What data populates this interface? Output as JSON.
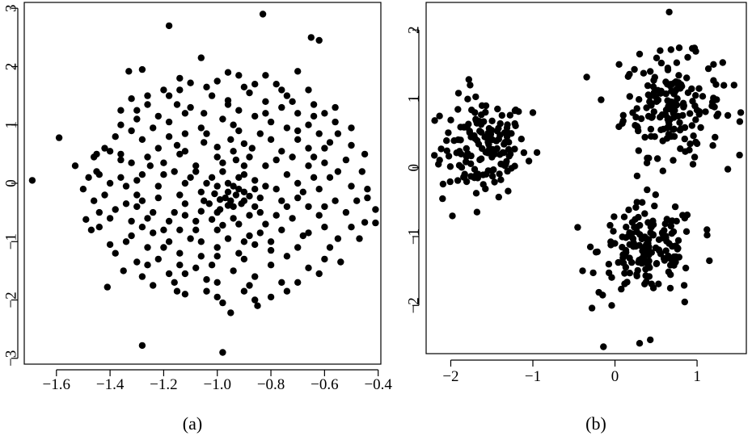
{
  "chart_data": [
    {
      "type": "scatter",
      "caption": "(a)",
      "xlim": [
        -1.72,
        -0.39
      ],
      "ylim": [
        -3.1,
        3.1
      ],
      "x_ticks": [
        -1.6,
        -1.4,
        -1.2,
        -1.0,
        -0.8,
        -0.6,
        -0.4
      ],
      "x_tick_labels": [
        "−1.6",
        "−1.4",
        "−1.2",
        "−1.0",
        "−0.8",
        "−0.6",
        "−0.4"
      ],
      "y_ticks": [
        -3,
        -2,
        -1,
        0,
        1,
        2,
        3
      ],
      "y_tick_labels": [
        "−3",
        "−2",
        "−1",
        "0",
        "1",
        "2",
        "3"
      ],
      "grid": false,
      "points": [
        [
          -1.69,
          0.05
        ],
        [
          -1.59,
          0.78
        ],
        [
          -0.83,
          2.9
        ],
        [
          -1.18,
          2.7
        ],
        [
          -0.65,
          2.5
        ],
        [
          -0.62,
          2.45
        ],
        [
          -1.28,
          -2.78
        ],
        [
          -0.98,
          -2.9
        ],
        [
          -0.41,
          -0.45
        ],
        [
          -0.41,
          -0.68
        ],
        [
          -0.45,
          -0.67
        ],
        [
          -0.44,
          -0.1
        ],
        [
          -1.49,
          -0.62
        ],
        [
          -1.47,
          -0.8
        ],
        [
          -1.45,
          0.5
        ],
        [
          -1.41,
          -1.78
        ],
        [
          -1.35,
          -1.5
        ],
        [
          -1.33,
          1.92
        ],
        [
          -1.28,
          1.95
        ],
        [
          -1.06,
          2.15
        ],
        [
          -0.7,
          1.92
        ],
        [
          -0.95,
          -2.22
        ],
        [
          -0.85,
          -2.1
        ],
        [
          -1.24,
          -1.75
        ],
        [
          -1.53,
          0.3
        ],
        [
          -1.5,
          -0.1
        ],
        [
          -1.38,
          0.8
        ],
        [
          -1.32,
          1.45
        ],
        [
          -1.2,
          1.6
        ],
        [
          -1.1,
          1.72
        ],
        [
          -0.92,
          1.85
        ],
        [
          -0.78,
          1.7
        ],
        [
          -0.72,
          1.4
        ],
        [
          -0.6,
          1.2
        ],
        [
          -0.55,
          0.85
        ],
        [
          -0.52,
          0.4
        ],
        [
          -0.5,
          -0.05
        ],
        [
          -0.52,
          -0.5
        ],
        [
          -0.55,
          -0.95
        ],
        [
          -0.6,
          -1.3
        ],
        [
          -0.7,
          -1.7
        ],
        [
          -0.8,
          -1.95
        ],
        [
          -1.0,
          -1.95
        ],
        [
          -1.15,
          -1.85
        ],
        [
          -1.28,
          -1.6
        ],
        [
          -1.38,
          -1.2
        ],
        [
          -1.44,
          -0.75
        ],
        [
          -1.46,
          -0.3
        ],
        [
          -1.44,
          0.15
        ],
        [
          -1.4,
          0.55
        ],
        [
          -1.3,
          1.1
        ],
        [
          -1.15,
          1.35
        ],
        [
          -1.02,
          1.5
        ],
        [
          -0.88,
          1.55
        ],
        [
          -0.76,
          1.3
        ],
        [
          -0.66,
          1.0
        ],
        [
          -0.6,
          0.6
        ],
        [
          -0.58,
          0.1
        ],
        [
          -0.6,
          -0.4
        ],
        [
          -0.66,
          -0.85
        ],
        [
          -0.74,
          -1.25
        ],
        [
          -0.86,
          -1.6
        ],
        [
          -1.0,
          -1.7
        ],
        [
          -1.12,
          -1.55
        ],
        [
          -1.22,
          -1.3
        ],
        [
          -1.32,
          -0.9
        ],
        [
          -1.38,
          -0.45
        ],
        [
          -1.4,
          0.0
        ],
        [
          -1.36,
          0.4
        ],
        [
          -1.28,
          0.75
        ],
        [
          -1.18,
          1.05
        ],
        [
          -1.05,
          1.2
        ],
        [
          -0.92,
          1.25
        ],
        [
          -0.8,
          1.05
        ],
        [
          -0.7,
          0.75
        ],
        [
          -0.66,
          0.3
        ],
        [
          -0.68,
          -0.15
        ],
        [
          -0.72,
          -0.6
        ],
        [
          -0.8,
          -1.0
        ],
        [
          -0.9,
          -1.3
        ],
        [
          -1.02,
          -1.4
        ],
        [
          -1.14,
          -1.2
        ],
        [
          -1.24,
          -0.85
        ],
        [
          -1.3,
          -0.4
        ],
        [
          -1.3,
          0.05
        ],
        [
          -1.26,
          0.45
        ],
        [
          -1.18,
          0.8
        ],
        [
          -1.06,
          0.95
        ],
        [
          -0.94,
          1.0
        ],
        [
          -0.84,
          0.85
        ],
        [
          -0.76,
          0.55
        ],
        [
          -0.74,
          0.15
        ],
        [
          -0.76,
          -0.3
        ],
        [
          -0.82,
          -0.7
        ],
        [
          -0.9,
          -1.0
        ],
        [
          -1.0,
          -1.1
        ],
        [
          -1.1,
          -0.95
        ],
        [
          -1.18,
          -0.65
        ],
        [
          -1.22,
          -0.25
        ],
        [
          -1.2,
          0.15
        ],
        [
          -1.14,
          0.5
        ],
        [
          -1.05,
          0.7
        ],
        [
          -0.95,
          0.75
        ],
        [
          -0.87,
          0.6
        ],
        [
          -0.82,
          0.3
        ],
        [
          -0.82,
          -0.05
        ],
        [
          -0.86,
          -0.4
        ],
        [
          -0.92,
          -0.7
        ],
        [
          -1.0,
          -0.8
        ],
        [
          -1.08,
          -0.65
        ],
        [
          -1.12,
          -0.35
        ],
        [
          -1.12,
          0.0
        ],
        [
          -1.08,
          0.3
        ],
        [
          -1.0,
          0.45
        ],
        [
          -0.93,
          0.4
        ],
        [
          -0.9,
          0.15
        ],
        [
          -0.9,
          -0.15
        ],
        [
          -0.94,
          -0.4
        ],
        [
          -1.0,
          -0.5
        ],
        [
          -1.05,
          -0.3
        ],
        [
          -1.04,
          0.0
        ],
        [
          -0.98,
          0.2
        ],
        [
          -0.96,
          -0.15
        ],
        [
          -0.97,
          -0.25
        ],
        [
          -0.95,
          -0.3
        ],
        [
          -0.93,
          -0.2
        ],
        [
          -0.99,
          -0.28
        ],
        [
          -0.92,
          -0.1
        ],
        [
          -0.9,
          -0.3
        ],
        [
          -0.88,
          -0.22
        ],
        [
          -1.01,
          -0.18
        ],
        [
          -0.96,
          -0.38
        ],
        [
          -1.25,
          0.3
        ],
        [
          -1.22,
          -0.05
        ],
        [
          -1.16,
          -0.5
        ],
        [
          -1.08,
          -0.8
        ],
        [
          -0.96,
          -0.95
        ],
        [
          -0.84,
          -0.85
        ],
        [
          -0.74,
          -0.4
        ],
        [
          -0.7,
          0.0
        ],
        [
          -0.72,
          0.45
        ],
        [
          -0.8,
          0.75
        ],
        [
          -0.92,
          0.9
        ],
        [
          -1.04,
          0.85
        ],
        [
          -1.15,
          0.65
        ],
        [
          -1.2,
          0.35
        ],
        [
          -1.3,
          -0.2
        ],
        [
          -1.26,
          -0.6
        ],
        [
          -1.18,
          -1.0
        ],
        [
          -1.06,
          -1.25
        ],
        [
          -0.92,
          -1.2
        ],
        [
          -0.8,
          -1.15
        ],
        [
          -0.68,
          -0.9
        ],
        [
          -0.62,
          -0.55
        ],
        [
          -0.62,
          -0.1
        ],
        [
          -0.64,
          0.45
        ],
        [
          -0.7,
          0.9
        ],
        [
          -0.82,
          1.2
        ],
        [
          -0.96,
          1.35
        ],
        [
          -1.1,
          1.3
        ],
        [
          -1.22,
          1.15
        ],
        [
          -1.32,
          0.9
        ],
        [
          -1.36,
          0.5
        ],
        [
          -1.36,
          0.1
        ],
        [
          -1.34,
          -0.35
        ],
        [
          -1.28,
          -0.75
        ],
        [
          -1.2,
          -1.1
        ],
        [
          -1.08,
          -1.45
        ],
        [
          -0.94,
          -1.5
        ],
        [
          -0.8,
          -1.4
        ],
        [
          -0.7,
          -1.1
        ],
        [
          -0.6,
          -0.75
        ],
        [
          -0.56,
          -0.3
        ],
        [
          -0.55,
          0.2
        ],
        [
          -0.58,
          0.7
        ],
        [
          -0.64,
          1.15
        ],
        [
          -0.74,
          1.5
        ],
        [
          -0.86,
          1.7
        ],
        [
          -1.0,
          1.75
        ],
        [
          -1.14,
          1.6
        ],
        [
          -1.26,
          1.35
        ],
        [
          -1.36,
          1.0
        ],
        [
          -1.42,
          0.6
        ],
        [
          -1.45,
          0.2
        ],
        [
          -1.42,
          -0.2
        ],
        [
          -1.4,
          -0.6
        ],
        [
          -1.34,
          -1.0
        ],
        [
          -1.26,
          -1.4
        ],
        [
          -1.16,
          -1.7
        ],
        [
          -1.04,
          -1.85
        ],
        [
          -0.9,
          -1.85
        ],
        [
          -0.76,
          -1.7
        ],
        [
          -0.66,
          -1.45
        ],
        [
          -0.58,
          -1.1
        ],
        [
          -0.5,
          -0.75
        ],
        [
          -0.48,
          -0.3
        ],
        [
          -0.46,
          0.2
        ],
        [
          -0.5,
          0.65
        ],
        [
          -0.56,
          1.05
        ],
        [
          -0.64,
          1.35
        ],
        [
          -0.76,
          1.6
        ],
        [
          -0.9,
          1.65
        ],
        [
          -1.04,
          1.65
        ],
        [
          -1.18,
          1.5
        ],
        [
          -1.3,
          1.25
        ],
        [
          -1.1,
          0.1
        ],
        [
          -1.06,
          -0.15
        ],
        [
          -1.02,
          0.1
        ],
        [
          -0.98,
          0.35
        ],
        [
          -0.94,
          0.55
        ],
        [
          -0.88,
          0.45
        ],
        [
          -0.86,
          0.05
        ],
        [
          -0.84,
          -0.25
        ],
        [
          -0.88,
          -0.55
        ],
        [
          -0.94,
          -0.6
        ],
        [
          -1.02,
          -0.62
        ],
        [
          -1.06,
          -0.48
        ],
        [
          -1.14,
          -0.2
        ],
        [
          -1.16,
          0.2
        ],
        [
          -1.12,
          0.55
        ],
        [
          -1.0,
          0.62
        ],
        [
          -0.9,
          0.68
        ],
        [
          -0.78,
          0.4
        ],
        [
          -0.78,
          -0.1
        ],
        [
          -0.84,
          -0.5
        ],
        [
          -0.98,
          -0.72
        ],
        [
          -1.14,
          -0.8
        ],
        [
          -1.24,
          -0.5
        ],
        [
          -1.22,
          0.6
        ],
        [
          -1.12,
          0.85
        ],
        [
          -0.98,
          1.1
        ],
        [
          -0.86,
          1.15
        ],
        [
          -0.74,
          0.95
        ],
        [
          -0.66,
          0.6
        ],
        [
          -0.64,
          0.1
        ],
        [
          -0.66,
          -0.4
        ],
        [
          -0.76,
          -0.8
        ],
        [
          -0.86,
          -1.05
        ],
        [
          -1.0,
          -1.25
        ],
        [
          -1.14,
          -1.4
        ],
        [
          -1.26,
          -1.1
        ],
        [
          -1.32,
          -0.65
        ],
        [
          -1.34,
          -0.05
        ],
        [
          -1.32,
          0.35
        ],
        [
          -1.24,
          0.95
        ],
        [
          -1.12,
          1.2
        ],
        [
          -0.96,
          1.42
        ],
        [
          -0.82,
          1.4
        ],
        [
          -0.7,
          1.2
        ],
        [
          -0.62,
          0.85
        ],
        [
          -0.6,
          0.35
        ],
        [
          -0.7,
          -0.25
        ],
        [
          -0.78,
          -0.55
        ],
        [
          -0.88,
          -0.9
        ],
        [
          -1.06,
          -1.0
        ],
        [
          -1.2,
          -0.8
        ],
        [
          -1.28,
          -0.3
        ],
        [
          -1.28,
          0.15
        ],
        [
          -1.04,
          -1.65
        ],
        [
          -0.88,
          -1.75
        ],
        [
          -1.18,
          -1.55
        ],
        [
          -1.12,
          -1.9
        ],
        [
          -0.98,
          -2.05
        ],
        [
          -0.86,
          -2.0
        ],
        [
          -0.74,
          -1.85
        ],
        [
          -1.3,
          -1.35
        ],
        [
          -1.4,
          -1.05
        ],
        [
          -1.44,
          -0.5
        ],
        [
          -1.48,
          0.1
        ],
        [
          -1.46,
          0.45
        ],
        [
          -1.36,
          1.25
        ],
        [
          -1.26,
          1.5
        ],
        [
          -1.14,
          1.8
        ],
        [
          -0.96,
          1.9
        ],
        [
          -0.82,
          1.85
        ],
        [
          -0.66,
          1.6
        ],
        [
          -0.56,
          1.3
        ],
        [
          -0.5,
          0.95
        ],
        [
          -0.45,
          0.5
        ],
        [
          -0.44,
          -0.25
        ],
        [
          -0.47,
          -0.95
        ],
        [
          -0.54,
          -1.35
        ],
        [
          -0.62,
          -1.55
        ],
        [
          -0.92,
          0.1
        ],
        [
          -0.96,
          0.0
        ],
        [
          -1.0,
          -0.05
        ],
        [
          -0.94,
          -0.05
        ],
        [
          -0.91,
          -0.35
        ],
        [
          -1.03,
          -0.35
        ],
        [
          -0.99,
          -0.45
        ],
        [
          -0.9,
          0.3
        ],
        [
          -0.86,
          -0.1
        ],
        [
          -1.08,
          0.2
        ],
        [
          -1.12,
          -0.55
        ]
      ]
    },
    {
      "type": "scatter",
      "caption": "(b)",
      "xlim": [
        -2.3,
        1.6
      ],
      "ylim": [
        -2.7,
        2.4
      ],
      "x_ticks": [
        -2,
        -1,
        0,
        1
      ],
      "x_tick_labels": [
        "−2",
        "−1",
        "0",
        "1"
      ],
      "y_ticks": [
        -2,
        -1,
        0,
        1,
        2
      ],
      "y_tick_labels": [
        "−2",
        "−1",
        "0",
        "1",
        "2"
      ],
      "grid": false,
      "clusters": [
        {
          "center": [
            -1.6,
            0.3
          ],
          "spread": [
            0.26,
            0.36
          ],
          "count": 150
        },
        {
          "center": [
            0.7,
            0.9
          ],
          "spread": [
            0.3,
            0.36
          ],
          "count": 170
        },
        {
          "center": [
            0.4,
            -1.2
          ],
          "spread": [
            0.3,
            0.33
          ],
          "count": 160
        }
      ],
      "extra_points": [
        [
          0.66,
          2.26
        ],
        [
          -0.14,
          -2.6
        ],
        [
          0.3,
          -2.55
        ],
        [
          0.43,
          -2.5
        ],
        [
          1.52,
          0.67
        ],
        [
          1.45,
          1.2
        ],
        [
          1.2,
          1.5
        ],
        [
          -2.2,
          0.18
        ],
        [
          -2.15,
          0.05
        ],
        [
          -1.98,
          -0.7
        ],
        [
          -2.1,
          -0.45
        ],
        [
          -1.78,
          1.28
        ],
        [
          -0.95,
          0.22
        ],
        [
          -1.0,
          0.8
        ],
        [
          -0.3,
          -1.15
        ],
        [
          -0.15,
          -1.85
        ],
        [
          -0.04,
          -2.0
        ],
        [
          0.85,
          -1.95
        ],
        [
          1.12,
          -0.9
        ],
        [
          1.15,
          -1.35
        ],
        [
          0.1,
          0.68
        ],
        [
          0.05,
          1.5
        ],
        [
          0.3,
          1.65
        ],
        [
          0.55,
          1.7
        ],
        [
          0.95,
          0.05
        ],
        [
          1.0,
          0.35
        ]
      ]
    }
  ]
}
